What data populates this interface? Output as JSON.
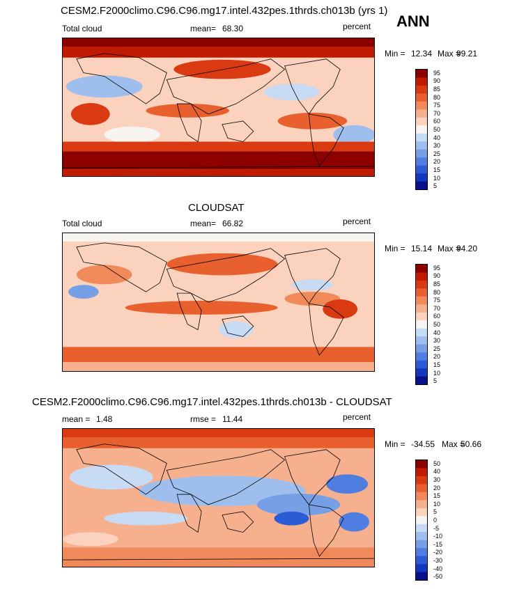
{
  "case_title": "CESM2.F2000climo.C96.C96.mg17.intel.432pes.1thrds.ch013b (yrs 1)",
  "season": "ANN",
  "chart_data": [
    {
      "type": "heatmap",
      "title": "CESM2.F2000climo.C96.C96.mg17.intel.432pes.1thrds.ch013b (yrs 1)",
      "left_label": "Total cloud",
      "stat_label": "mean=",
      "stat_value": "68.30",
      "units": "percent",
      "min_label": "Min =",
      "min_value": "12.34",
      "max_label": "Max =",
      "max_value": "99.21",
      "colorbar_levels": [
        "95",
        "90",
        "85",
        "80",
        "75",
        "70",
        "60",
        "50",
        "40",
        "30",
        "25",
        "20",
        "15",
        "10",
        "5"
      ]
    },
    {
      "type": "heatmap",
      "title": "CLOUDSAT",
      "left_label": "Total cloud",
      "stat_label": "mean=",
      "stat_value": "66.82",
      "units": "percent",
      "min_label": "Min =",
      "min_value": "15.14",
      "max_label": "Max =",
      "max_value": "94.20",
      "colorbar_levels": [
        "95",
        "90",
        "85",
        "80",
        "75",
        "70",
        "60",
        "50",
        "40",
        "30",
        "25",
        "20",
        "15",
        "10",
        "5"
      ]
    },
    {
      "type": "heatmap",
      "title": "CESM2.F2000climo.C96.C96.mg17.intel.432pes.1thrds.ch013b - CLOUDSAT",
      "left_label": "mean =",
      "left_value": "1.48",
      "stat_label": "rmse =",
      "stat_value": "11.44",
      "units": "percent",
      "min_label": "Min =",
      "min_value": "-34.55",
      "max_label": "Max =",
      "max_value": "50.66",
      "colorbar_levels": [
        "50",
        "40",
        "30",
        "20",
        "15",
        "10",
        "5",
        "0",
        "-5",
        "-10",
        "-15",
        "-20",
        "-30",
        "-40",
        "-50"
      ]
    }
  ],
  "colors": {
    "colorbar": [
      "#8c0000",
      "#c01a00",
      "#d93a12",
      "#e8602e",
      "#f08a5a",
      "#f6b08e",
      "#fad2bd",
      "#f7f4f2",
      "#c8dbf5",
      "#9ebfee",
      "#769fe6",
      "#4f7de0",
      "#2b5cd6",
      "#1338c0",
      "#08108c"
    ],
    "land_line": "#000000"
  }
}
